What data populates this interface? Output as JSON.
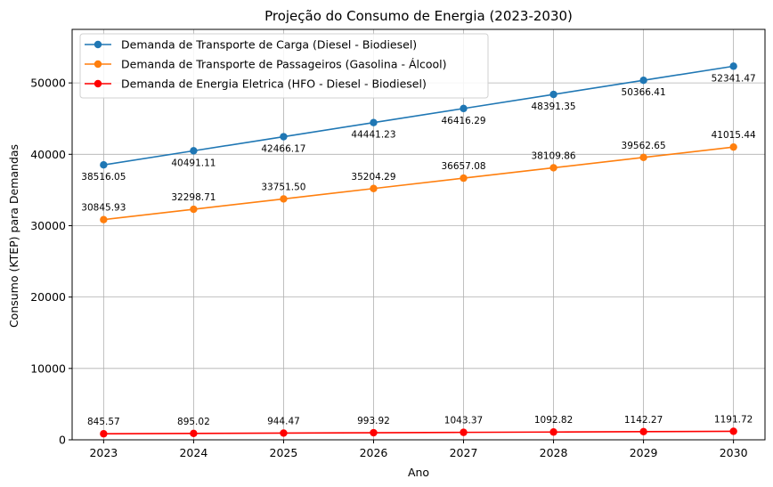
{
  "chart_data": {
    "type": "line",
    "title": "Projeção do Consumo de Energia (2023-2030)",
    "xlabel": "Ano",
    "ylabel": "Consumo (KTEP) para Demandas",
    "x": [
      2023,
      2024,
      2025,
      2026,
      2027,
      2028,
      2029,
      2030
    ],
    "x_tick_labels": [
      "2023",
      "2024",
      "2025",
      "2026",
      "2027",
      "2028",
      "2029",
      "2030"
    ],
    "xlim": [
      2022.65,
      2030.35
    ],
    "ylim": [
      0,
      57500
    ],
    "y_ticks": [
      0,
      10000,
      20000,
      30000,
      40000,
      50000
    ],
    "y_tick_labels": [
      "0",
      "10000",
      "20000",
      "30000",
      "40000",
      "50000"
    ],
    "grid": true,
    "legend_position": "top-left",
    "series": [
      {
        "name": "Demanda de Transporte de Carga (Diesel - Biodiesel)",
        "color": "#1f77b4",
        "label_placement": "below",
        "values": [
          38516.05,
          40491.11,
          42466.17,
          44441.23,
          46416.29,
          48391.35,
          50366.41,
          52341.47
        ],
        "labels": [
          "38516.05",
          "40491.11",
          "42466.17",
          "44441.23",
          "46416.29",
          "48391.35",
          "50366.41",
          "52341.47"
        ]
      },
      {
        "name": "Demanda de Transporte de Passageiros (Gasolina - Álcool)",
        "color": "#ff7f0e",
        "label_placement": "above",
        "values": [
          30845.93,
          32298.71,
          33751.5,
          35204.29,
          36657.08,
          38109.86,
          39562.65,
          41015.44
        ],
        "labels": [
          "30845.93",
          "32298.71",
          "33751.50",
          "35204.29",
          "36657.08",
          "38109.86",
          "39562.65",
          "41015.44"
        ]
      },
      {
        "name": "Demanda de Energia Eletrica (HFO - Diesel - Biodiesel)",
        "color": "#ff0000",
        "label_placement": "above",
        "values": [
          845.57,
          895.02,
          944.47,
          993.92,
          1043.37,
          1092.82,
          1142.27,
          1191.72
        ],
        "labels": [
          "845.57",
          "895.02",
          "944.47",
          "993.92",
          "1043.37",
          "1092.82",
          "1142.27",
          "1191.72"
        ]
      }
    ]
  }
}
